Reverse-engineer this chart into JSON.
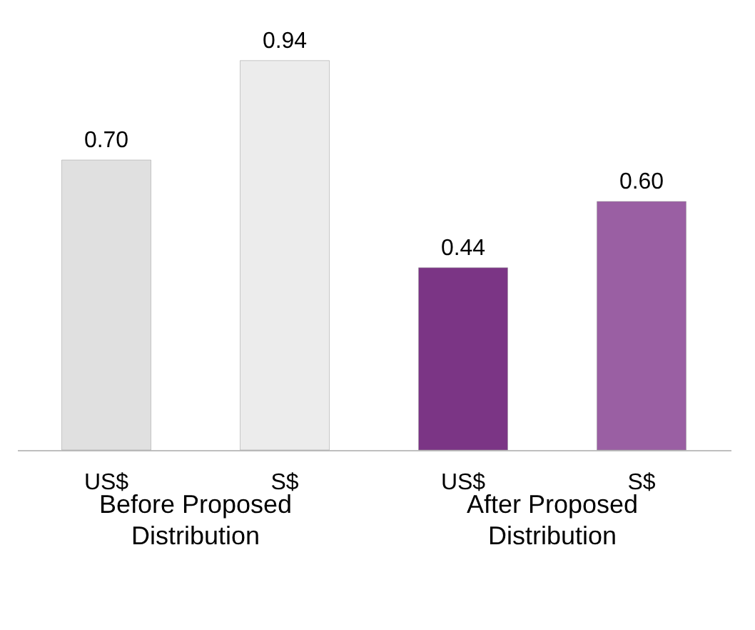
{
  "chart_data": {
    "type": "bar",
    "categories": [
      "US$",
      "S$",
      "US$",
      "S$"
    ],
    "values": [
      0.7,
      0.94,
      0.44,
      0.6
    ],
    "colors": [
      "#e0e0e0",
      "#ececec",
      "#7b3585",
      "#9a5fa3"
    ],
    "value_labels": [
      "0.70",
      "0.94",
      "0.44",
      "0.60"
    ],
    "annotations": [
      "Before Proposed Distribution",
      "After Proposed Distribution"
    ]
  }
}
